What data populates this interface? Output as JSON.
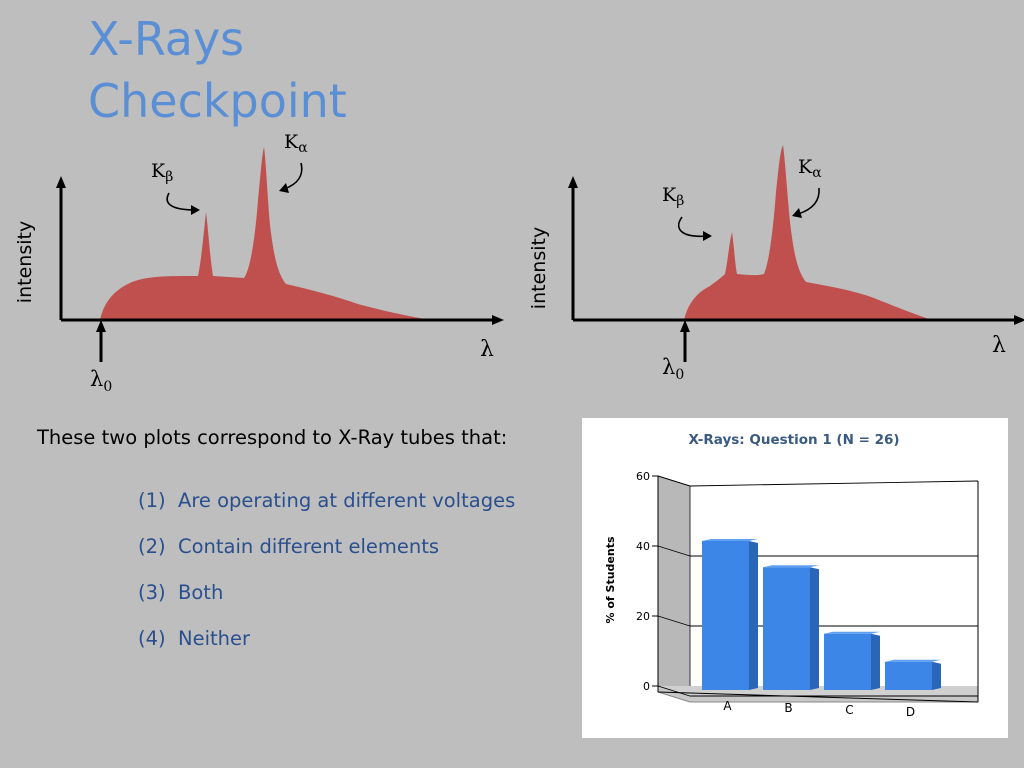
{
  "slide": {
    "title_lines": [
      "X-Rays",
      "Checkpoint"
    ],
    "question": "These two plots correspond to X-Ray tubes that:",
    "options": [
      {
        "num": "(1)",
        "text": "Are operating at different voltages"
      },
      {
        "num": "(2)",
        "text": "Contain different elements"
      },
      {
        "num": "(3)",
        "text": "Both"
      },
      {
        "num": "(4)",
        "text": "Neither"
      }
    ]
  },
  "spectra": [
    {
      "ylabel": "intensity",
      "xlabel": "λ",
      "lambda0": "λ",
      "lambda0_sub": "0",
      "k_beta": "K",
      "k_beta_sub": "β",
      "k_alpha": "K",
      "k_alpha_sub": "α"
    },
    {
      "ylabel": "intensity",
      "xlabel": "λ",
      "lambda0": "λ",
      "lambda0_sub": "0",
      "k_beta": "K",
      "k_beta_sub": "β",
      "k_alpha": "K",
      "k_alpha_sub": "α"
    }
  ],
  "colors": {
    "spectrum_fill": "#c0504d",
    "title": "#5a8fd6",
    "options": "#2a4f8e",
    "bar": "#3b86e6"
  },
  "chart_data": {
    "type": "bar",
    "title": "X-Rays: Question 1 (N = 26)",
    "categories": [
      "A",
      "B",
      "C",
      "D"
    ],
    "values": [
      42,
      34.5,
      15.5,
      7.5
    ],
    "xlabel": "",
    "ylabel": "% of Students",
    "ylim": [
      0,
      60
    ],
    "yticks": [
      0,
      20,
      40,
      60
    ],
    "grid": true,
    "style": "3d"
  }
}
